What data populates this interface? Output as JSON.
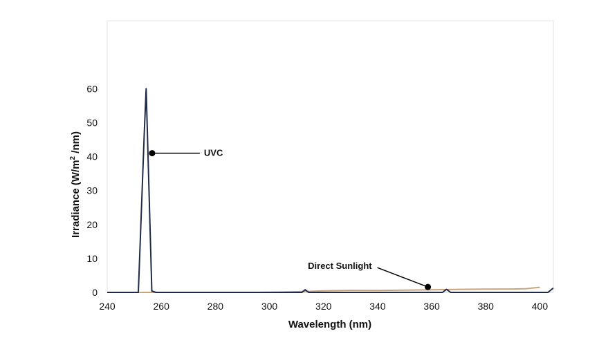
{
  "chart_data": {
    "type": "line",
    "title": "",
    "xlabel": "Wavelength (nm)",
    "ylabel": "Irradiance (W/m",
    "ylabel_sup": "2",
    "ylabel_tail": " /nm)",
    "xlim": [
      240,
      405
    ],
    "ylim": [
      0,
      80
    ],
    "x_ticks": [
      240,
      260,
      280,
      300,
      320,
      340,
      360,
      380,
      400
    ],
    "y_ticks": [
      0,
      10,
      20,
      30,
      40,
      50,
      60
    ],
    "grid": false,
    "legend": "none",
    "series": [
      {
        "name": "UVC",
        "color": "#1f2a44",
        "points": [
          [
            240,
            0
          ],
          [
            251.5,
            0
          ],
          [
            253.7,
            47
          ],
          [
            254.4,
            60
          ],
          [
            256.5,
            0.4
          ],
          [
            258,
            0
          ],
          [
            312,
            0
          ],
          [
            313.2,
            0.8
          ],
          [
            314.5,
            0
          ],
          [
            364,
            0
          ],
          [
            365.5,
            0.9
          ],
          [
            367,
            0
          ],
          [
            403,
            0
          ],
          [
            405,
            1.3
          ]
        ]
      },
      {
        "name": "Direct Sunlight",
        "color": "#c9a37a",
        "points": [
          [
            240,
            0
          ],
          [
            296,
            0
          ],
          [
            300,
            0.05
          ],
          [
            305,
            0.1
          ],
          [
            310,
            0.2
          ],
          [
            315,
            0.3
          ],
          [
            320,
            0.45
          ],
          [
            330,
            0.6
          ],
          [
            340,
            0.55
          ],
          [
            350,
            0.65
          ],
          [
            360,
            0.75
          ],
          [
            370,
            0.9
          ],
          [
            380,
            0.95
          ],
          [
            390,
            1.0
          ],
          [
            395,
            1.1
          ],
          [
            400,
            1.5
          ]
        ]
      }
    ],
    "annotations": [
      {
        "label": "UVC",
        "x": 256.6,
        "y": 41
      },
      {
        "label": "Direct Sunlight",
        "x": 358.6,
        "y": 1.6
      }
    ]
  }
}
